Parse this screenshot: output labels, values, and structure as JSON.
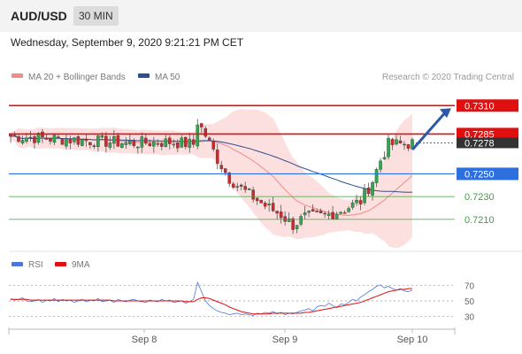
{
  "header": {
    "symbol": "AUD/USD",
    "timeframe": "30 MIN",
    "datetime": "Wednesday, September 9, 2020 9:21:21 PM CET"
  },
  "legend": {
    "ma20": {
      "label": "MA 20 + Bollinger Bands",
      "color": "#f28a8a"
    },
    "ma50": {
      "label": "MA 50",
      "color": "#2f4f8f"
    },
    "credit": "Research © 2020 Trading Central",
    "rsi": {
      "label": "RSI",
      "color": "#4a78d8"
    },
    "rsi_ma": {
      "label": "9MA",
      "color": "#e01010"
    }
  },
  "chart_data": [
    {
      "type": "candlestick",
      "ylim": [
        0.7185,
        0.7325
      ],
      "x_ticks": [
        "Sep 8",
        "Sep 9",
        "Sep 10"
      ],
      "current_price": {
        "label": "0.7278",
        "value": 0.7278
      },
      "levels": [
        {
          "label": "0.7310",
          "value": 0.731,
          "color": "#e01010",
          "style": "box",
          "width": 1.6
        },
        {
          "label": "0.7285",
          "value": 0.7285,
          "color": "#e01010",
          "style": "box",
          "width": 1.6
        },
        {
          "label": "0.7250",
          "value": 0.725,
          "color": "#2e6fe0",
          "style": "box",
          "width": 1.2
        },
        {
          "label": "0.7230",
          "value": 0.723,
          "color": "#3aa33a",
          "style": "text",
          "width": 0.8
        },
        {
          "label": "0.7210",
          "value": 0.721,
          "color": "#3aa33a",
          "style": "text",
          "width": 0.8
        }
      ],
      "forecast_arrow": {
        "from": 0.7272,
        "to": 0.731,
        "color": "#2c5aa8"
      },
      "colors": {
        "up": "#2fa84f",
        "down": "#cc2a2a",
        "band": "#fcd9d9"
      }
    },
    {
      "type": "line",
      "title": "RSI",
      "ylim": [
        20,
        80
      ],
      "y_ticks": [
        70,
        50,
        30
      ],
      "series": [
        {
          "name": "RSI",
          "values": [
            53,
            51,
            52,
            54,
            50,
            49,
            50,
            52,
            48,
            51,
            50,
            53,
            49,
            52,
            50,
            51,
            48,
            50,
            52,
            49,
            51,
            50,
            53,
            49,
            50,
            51,
            48,
            52,
            50,
            49,
            51,
            52,
            50,
            49,
            48,
            51,
            50,
            49,
            52,
            50,
            51,
            48,
            49,
            50,
            47,
            49,
            52,
            74,
            62,
            50,
            44,
            40,
            37,
            35,
            34,
            32,
            33,
            34,
            32,
            33,
            32,
            31,
            34,
            33,
            35,
            34,
            36,
            33,
            35,
            32,
            34,
            33,
            35,
            37,
            38,
            40,
            37,
            42,
            44,
            43,
            47,
            44,
            41,
            46,
            45,
            48,
            52,
            50,
            55,
            58,
            62,
            65,
            69,
            71,
            67,
            69,
            66,
            64,
            66,
            63,
            62,
            64
          ]
        },
        {
          "name": "9MA",
          "values": [
            52,
            52,
            52,
            52,
            52,
            51,
            51,
            51,
            51,
            51,
            51,
            51,
            51,
            51,
            51,
            51,
            51,
            51,
            51,
            51,
            51,
            51,
            51,
            51,
            51,
            51,
            50,
            50,
            50,
            50,
            50,
            50,
            50,
            50,
            50,
            50,
            50,
            50,
            50,
            50,
            50,
            50,
            50,
            50,
            49,
            49,
            49,
            52,
            54,
            54,
            53,
            51,
            49,
            47,
            45,
            42,
            40,
            38,
            36,
            35,
            34,
            33,
            33,
            33,
            33,
            33,
            34,
            34,
            34,
            34,
            34,
            34,
            34,
            34,
            35,
            35,
            36,
            37,
            38,
            39,
            40,
            41,
            42,
            43,
            44,
            45,
            46,
            47,
            48,
            50,
            52,
            54,
            56,
            58,
            60,
            62,
            63,
            64,
            65,
            65,
            66,
            66
          ]
        }
      ]
    }
  ]
}
